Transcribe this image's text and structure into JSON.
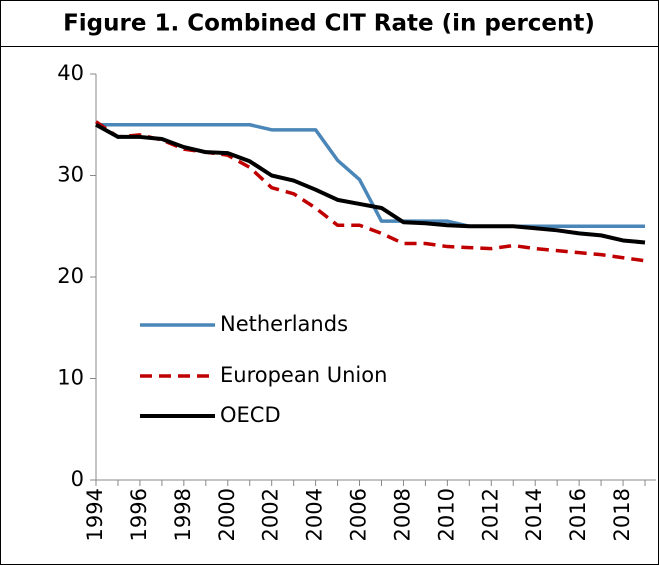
{
  "chart_data": {
    "type": "line",
    "title": "Figure 1. Combined CIT Rate (in percent)",
    "categories": [
      "1994",
      null,
      "1996",
      null,
      "1998",
      null,
      "2000",
      null,
      "2002",
      null,
      "2004",
      null,
      "2006",
      null,
      "2008",
      null,
      "2010",
      null,
      "2012",
      null,
      "2014",
      null,
      "2016",
      null,
      "2018",
      null
    ],
    "series": [
      {
        "name": "Netherlands",
        "color": "#4a86b8",
        "dash": false,
        "values": [
          35,
          35,
          35,
          35,
          35,
          35,
          35,
          35,
          34.5,
          34.5,
          34.5,
          31.5,
          29.6,
          25.5,
          25.5,
          25.5,
          25.5,
          25,
          25,
          25,
          25,
          25,
          25,
          25,
          25,
          25
        ]
      },
      {
        "name": "European Union",
        "color": "#c00000",
        "dash": true,
        "values": [
          35.3,
          33.8,
          34,
          33.5,
          32.6,
          32.3,
          32,
          30.8,
          28.8,
          28.2,
          26.8,
          25.1,
          25.1,
          24.3,
          23.3,
          23.3,
          23.0,
          22.9,
          22.8,
          23.1,
          22.8,
          22.6,
          22.4,
          22.2,
          21.9,
          21.6
        ]
      },
      {
        "name": "OECD",
        "color": "#000000",
        "dash": false,
        "values": [
          35,
          33.8,
          33.8,
          33.6,
          32.8,
          32.3,
          32.2,
          31.4,
          30,
          29.5,
          28.6,
          27.6,
          27.2,
          26.8,
          25.4,
          25.3,
          25.1,
          25.0,
          25.0,
          25.0,
          24.8,
          24.6,
          24.3,
          24.1,
          23.6,
          23.4
        ]
      }
    ],
    "ylim": [
      0,
      40
    ],
    "yticks": [
      0,
      10,
      20,
      30,
      40
    ],
    "grid": false
  }
}
